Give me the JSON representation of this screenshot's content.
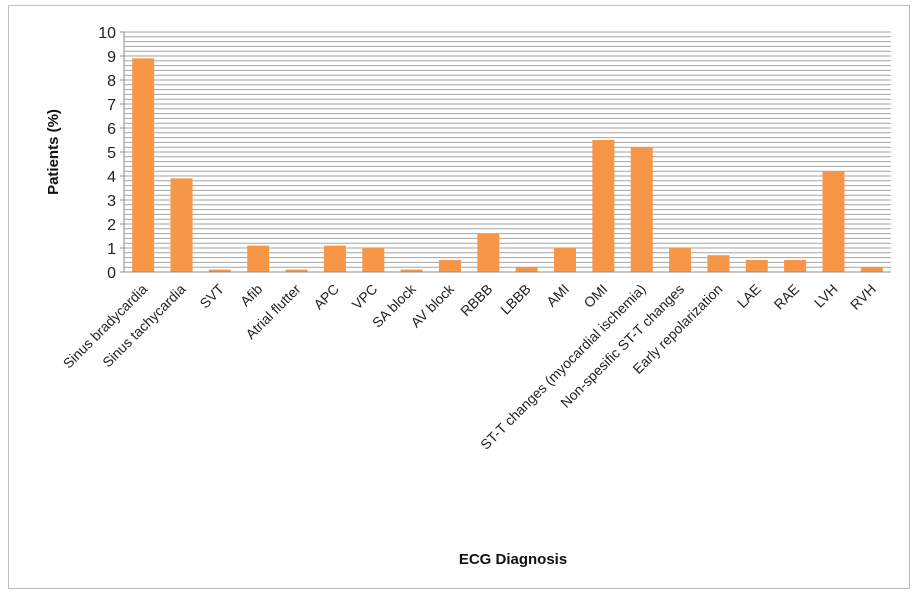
{
  "chart_data": {
    "type": "bar",
    "xlabel": "ECG Diagnosis",
    "ylabel": "Patients (%)",
    "ylim": [
      0,
      10
    ],
    "y_ticks": [
      0,
      1,
      2,
      3,
      4,
      5,
      6,
      7,
      8,
      9,
      10
    ],
    "minor_grid_step": 0.2,
    "grid": true,
    "bar_color": "#f79646",
    "grid_color": "#a6a6a6",
    "categories": [
      "Sinus bradycardia",
      "Sinus tachycardia",
      "SVT",
      "Afib",
      "Atrial flutter",
      "APC",
      "VPC",
      "SA block",
      "AV block",
      "RBBB",
      "LBBB",
      "AMI",
      "OMI",
      "ST-T changes (myocardial ischemia)",
      "Non-spesific ST-T changes",
      "Early repolarization",
      "LAE",
      "RAE",
      "LVH",
      "RVH"
    ],
    "values": [
      8.9,
      3.9,
      0.1,
      1.1,
      0.1,
      1.1,
      1.0,
      0.1,
      0.5,
      1.6,
      0.2,
      1.0,
      5.5,
      5.2,
      1.0,
      0.7,
      0.5,
      0.5,
      4.2,
      0.2
    ]
  }
}
